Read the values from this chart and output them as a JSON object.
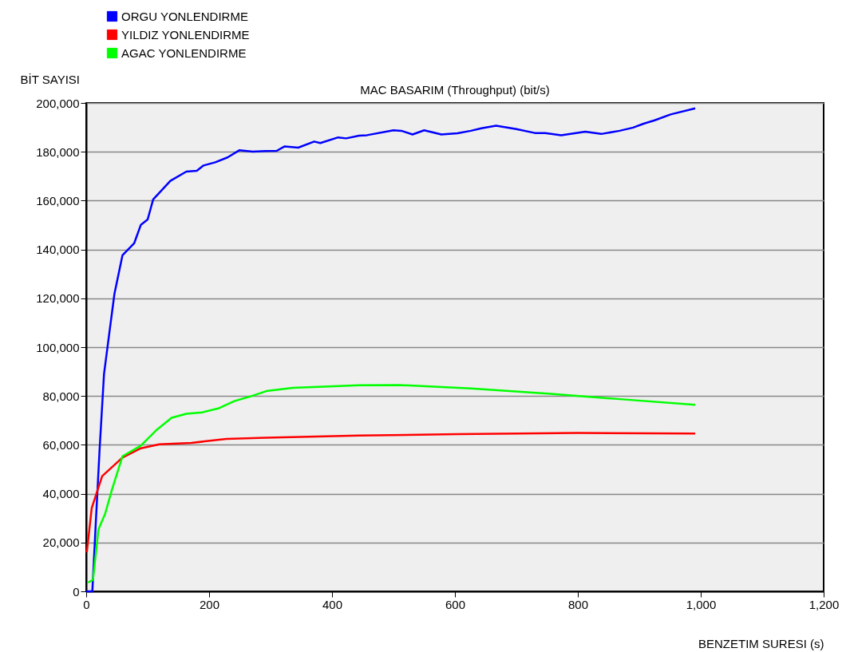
{
  "chart_data": {
    "type": "line",
    "title": "MAC BASARIM (Throughput) (bit/s)",
    "xlabel": "BENZETIM SURESI (s)",
    "ylabel": "BİT SAYISI",
    "xlim": [
      0,
      1200
    ],
    "ylim": [
      0,
      200000
    ],
    "xticks": [
      0,
      200,
      400,
      600,
      800,
      {
        "value": 1000,
        "label": "1,000"
      },
      {
        "value": 1200,
        "label": "1,200"
      }
    ],
    "yticks": [
      0,
      {
        "value": 20000,
        "label": "20,000"
      },
      {
        "value": 40000,
        "label": "40,000"
      },
      {
        "value": 60000,
        "label": "60,000"
      },
      {
        "value": 80000,
        "label": "80,000"
      },
      {
        "value": 100000,
        "label": "100,000"
      },
      {
        "value": 120000,
        "label": "120,000"
      },
      {
        "value": 140000,
        "label": "140,000"
      },
      {
        "value": 160000,
        "label": "160,000"
      },
      {
        "value": 180000,
        "label": "180,000"
      },
      {
        "value": 200000,
        "label": "200,000"
      }
    ],
    "grid": "y",
    "legend": "top left",
    "line_style": "solid",
    "marker": "none",
    "series": [
      {
        "name": "ORGU YONLENDIRME",
        "color": "#0000ff",
        "x": [
          0,
          10,
          16,
          22,
          29,
          38,
          46,
          59,
          78,
          89,
          100,
          109,
          137,
          163,
          180,
          191,
          210,
          230,
          249,
          271,
          292,
          310,
          323,
          345,
          371,
          381,
          410,
          423,
          444,
          457,
          500,
          513,
          531,
          550,
          578,
          604,
          626,
          643,
          667,
          700,
          730,
          747,
          773,
          812,
          838,
          868,
          890,
          907,
          925,
          951,
          991
        ],
        "values": [
          0,
          0,
          30000,
          59000,
          89000,
          106500,
          121900,
          137600,
          142500,
          150100,
          152300,
          160500,
          168100,
          171900,
          172200,
          174400,
          175700,
          177700,
          180600,
          180100,
          180300,
          180400,
          182200,
          181700,
          184200,
          183600,
          185900,
          185500,
          186600,
          186800,
          188800,
          188600,
          187100,
          188800,
          187100,
          187600,
          188600,
          189600,
          190700,
          189300,
          187700,
          187700,
          186800,
          188200,
          187300,
          188600,
          189900,
          191500,
          192900,
          195300,
          197800
        ]
      },
      {
        "name": "YILDIZ YONLENDIRME",
        "color": "#ff0000",
        "x": [
          1,
          9,
          26,
          59,
          89,
          119,
          171,
          228,
          292,
          444,
          604,
          799,
          991
        ],
        "values": [
          16000,
          34100,
          47200,
          54800,
          58600,
          60200,
          60800,
          62400,
          62900,
          63800,
          64400,
          64900,
          64600
        ]
      },
      {
        "name": "AGAC YONLENDIRME",
        "color": "#00ff00",
        "x": [
          3,
          11,
          20,
          31,
          42,
          59,
          89,
          115,
          139,
          163,
          189,
          215,
          241,
          267,
          293,
          336,
          444,
          509,
          626,
          756,
          864,
          991
        ],
        "values": [
          3600,
          4700,
          25400,
          31900,
          41700,
          55300,
          59700,
          66200,
          71100,
          72700,
          73300,
          74900,
          77900,
          79800,
          82000,
          83300,
          84400,
          84500,
          83100,
          80900,
          78800,
          76400
        ]
      }
    ]
  }
}
